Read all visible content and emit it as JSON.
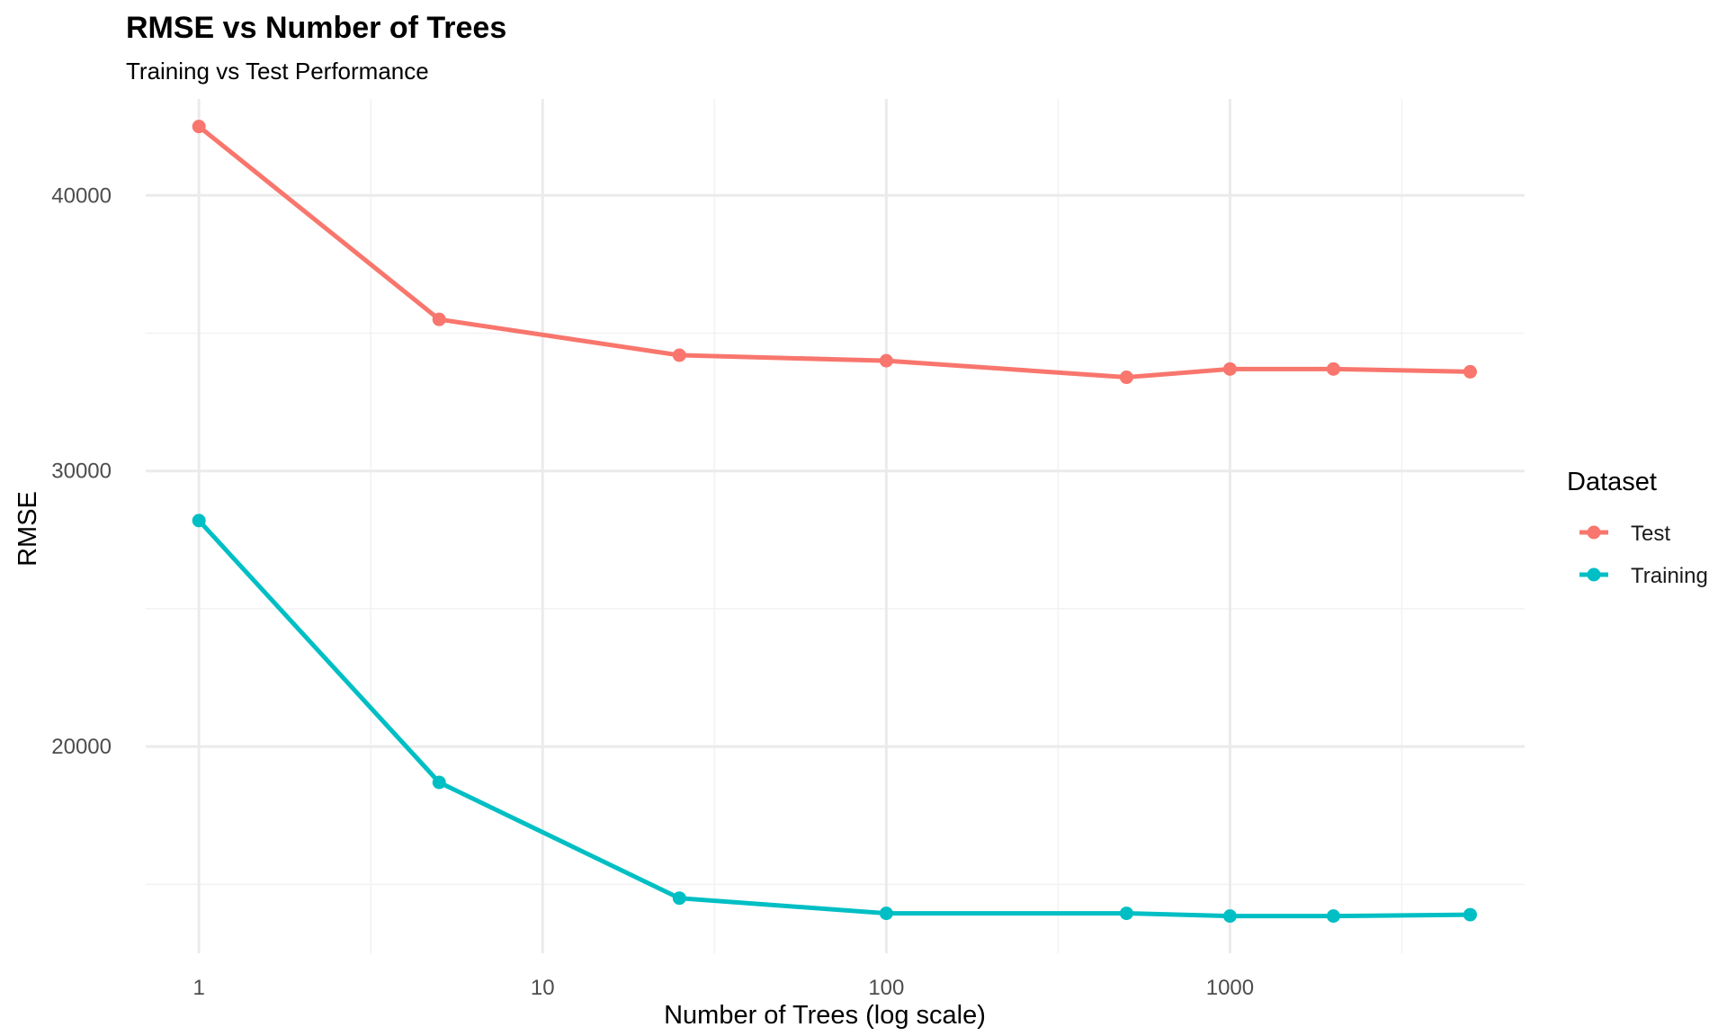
{
  "chart_data": {
    "type": "line",
    "title": "RMSE vs Number of Trees",
    "subtitle": "Training vs Test Performance",
    "xlabel": "Number of Trees (log scale)",
    "ylabel": "RMSE",
    "x_scale": "log10",
    "xlim": [
      1,
      5000
    ],
    "ylim": [
      12500,
      43500
    ],
    "x_ticks": [
      1,
      10,
      100,
      1000
    ],
    "x_tick_labels": [
      "1",
      "10",
      "100",
      "1000"
    ],
    "y_ticks": [
      20000,
      30000,
      40000
    ],
    "y_tick_labels": [
      "20000",
      "30000",
      "40000"
    ],
    "grid": true,
    "legend": {
      "title": "Dataset",
      "position": "right"
    },
    "x": [
      1,
      5,
      25,
      100,
      500,
      1000,
      2000,
      5000
    ],
    "series": [
      {
        "name": "Test",
        "color": "#F8766D",
        "values": [
          42500,
          35500,
          34200,
          34000,
          33400,
          33700,
          33700,
          33600
        ]
      },
      {
        "name": "Training",
        "color": "#00BFC4",
        "values": [
          28200,
          18700,
          14500,
          13950,
          13950,
          13850,
          13850,
          13900
        ]
      }
    ]
  }
}
